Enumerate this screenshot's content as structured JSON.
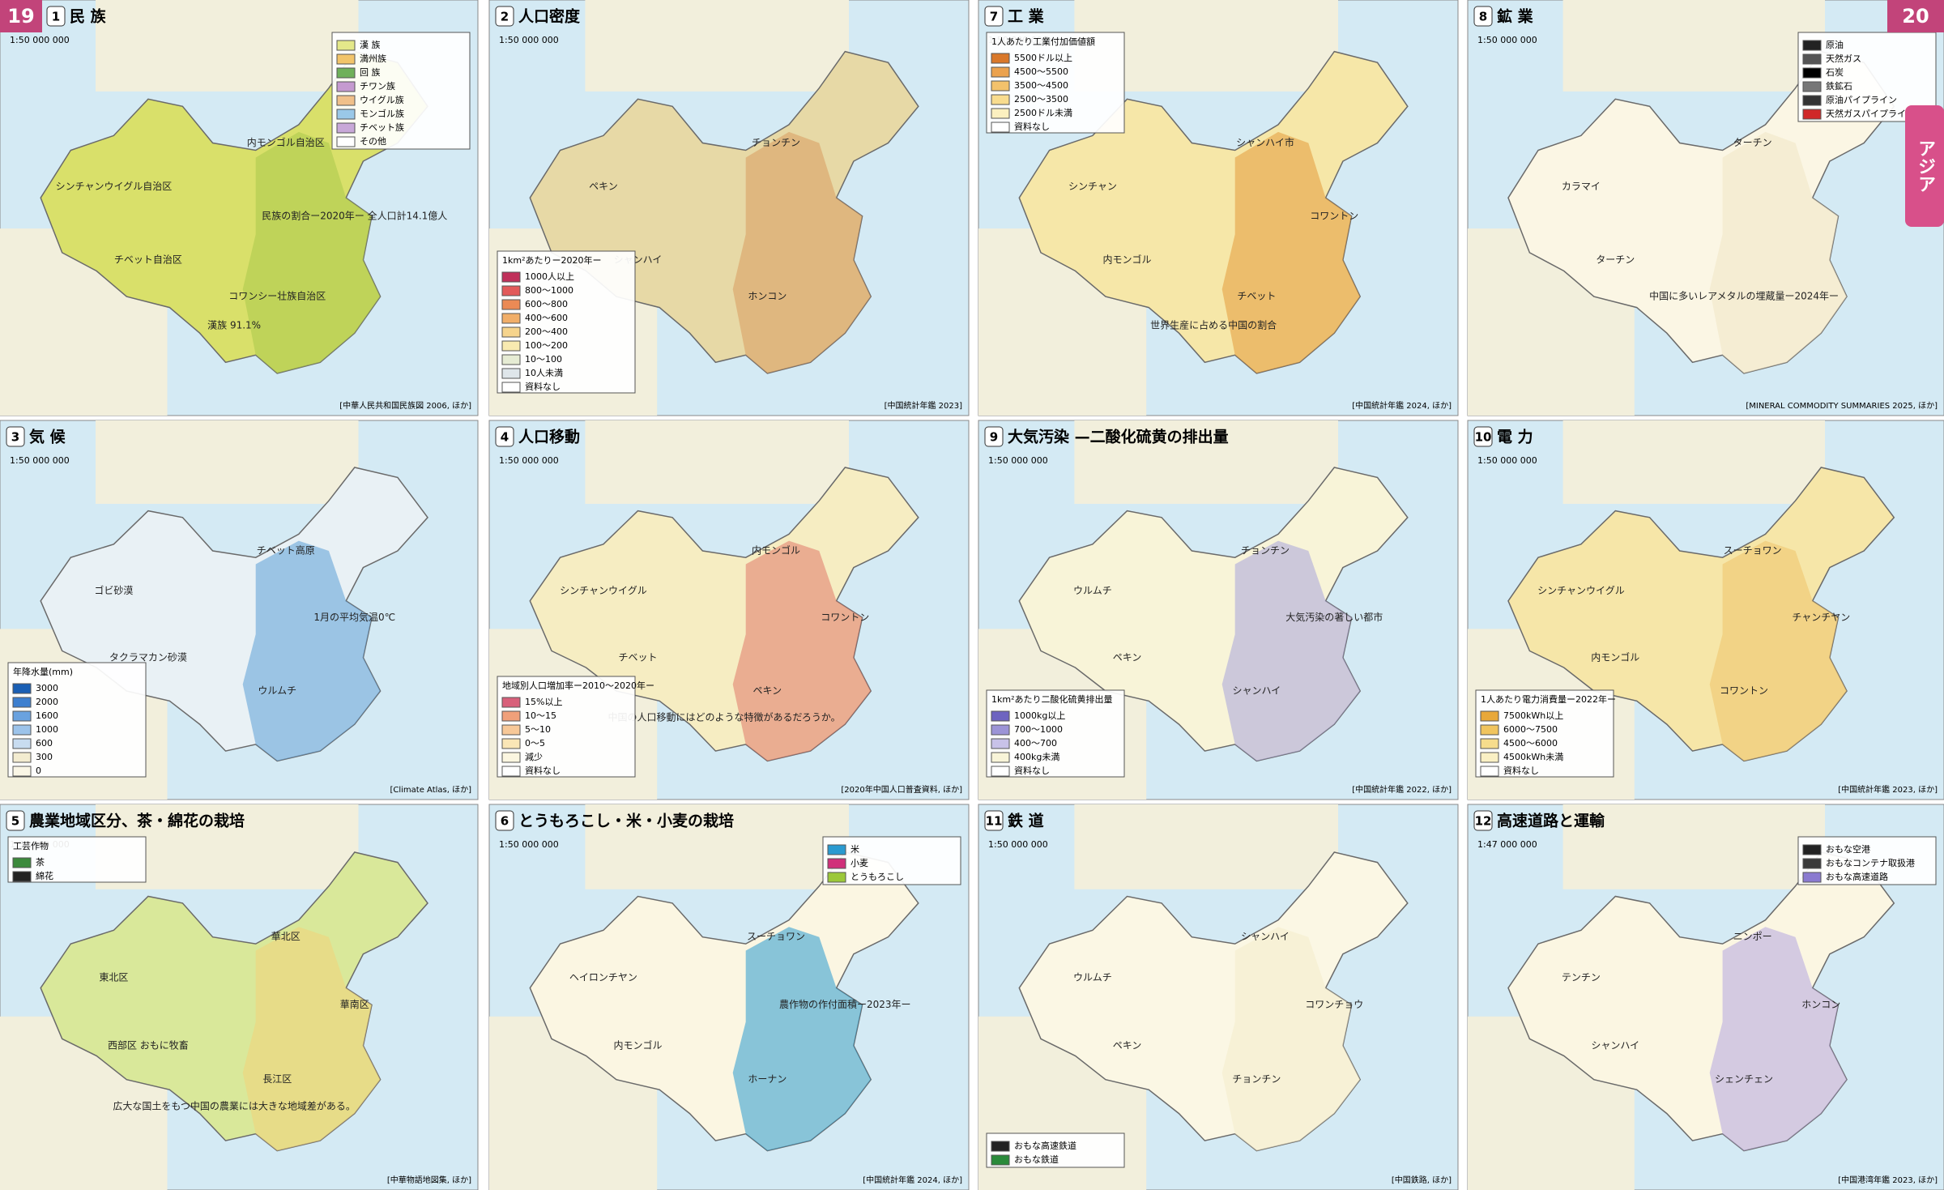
{
  "page": {
    "left_number": "19",
    "right_number": "20",
    "tab": "アジア"
  },
  "panels": [
    {
      "num": "1",
      "title": "民 族",
      "scale": "1:50 000 000",
      "source": "[中華人民共和国民族図 2006, ほか]",
      "base": "#d9e06a",
      "accent": "#a9c84a",
      "legend_corner": "top-right",
      "legend_title": null,
      "legend": [
        {
          "label": "漢 族",
          "color": "#e4e88a"
        },
        {
          "label": "満州族",
          "color": "#f2c46a"
        },
        {
          "label": "回 族",
          "color": "#6fb05a"
        },
        {
          "label": "チワン族",
          "color": "#c59ad0"
        },
        {
          "label": "ウイグル族",
          "color": "#f0c08a"
        },
        {
          "label": "モンゴル族",
          "color": "#9ac8e8"
        },
        {
          "label": "チベット族",
          "color": "#c8a8d8"
        },
        {
          "label": "その他",
          "color": "#ffffff"
        }
      ],
      "labels": [
        "シンチャンウイグル自治区",
        "チベット自治区",
        "内モンゴル自治区",
        "コワンシー壮族自治区",
        "民族の割合ー2020年ー 全人口計14.1億人",
        "漢族 91.1%"
      ]
    },
    {
      "num": "2",
      "title": "人口密度",
      "scale": "1:50 000 000",
      "source": "[中国統計年鑑 2023]",
      "base": "#e7d9a6",
      "accent": "#d89a5e",
      "legend_corner": "bottom-left",
      "legend_title": "1km²あたりー2020年ー",
      "legend": [
        {
          "label": "1000人以上",
          "color": "#c0305a"
        },
        {
          "label": "800〜1000",
          "color": "#e25a5a"
        },
        {
          "label": "600〜800",
          "color": "#eb8a55"
        },
        {
          "label": "400〜600",
          "color": "#f1ae68"
        },
        {
          "label": "200〜400",
          "color": "#f6d48c"
        },
        {
          "label": "100〜200",
          "color": "#f8eab0"
        },
        {
          "label": "10〜100",
          "color": "#e6ecd4"
        },
        {
          "label": "10人未満",
          "color": "#dfe6ea"
        },
        {
          "label": "資料なし",
          "color": "#ffffff"
        }
      ],
      "labels": [
        "ペキン",
        "シャンハイ",
        "チョンチン",
        "ホンコン"
      ]
    },
    {
      "num": "7",
      "title": "工 業",
      "scale": "1:50 000 000",
      "source": "[中国統計年鑑 2024, ほか]",
      "base": "#f6e7a8",
      "accent": "#e39a3a",
      "legend_corner": "top-left",
      "legend_title": "1人あたり工業付加価値額",
      "legend": [
        {
          "label": "5500ドル以上",
          "color": "#d9782a"
        },
        {
          "label": "4500〜5500",
          "color": "#eba24e"
        },
        {
          "label": "3500〜4500",
          "color": "#f3c26c"
        },
        {
          "label": "2500〜3500",
          "color": "#f8dc8e"
        },
        {
          "label": "2500ドル未満",
          "color": "#fbf0c0"
        },
        {
          "label": "資料なし",
          "color": "#ffffff"
        }
      ],
      "labels": [
        "シンチャン",
        "内モンゴル",
        "シャンハイ市",
        "チベット",
        "コワントン",
        "世界生産に占める中国の割合"
      ]
    },
    {
      "num": "8",
      "title": "鉱 業",
      "scale": "1:50 000 000",
      "source": "[MINERAL COMMODITY SUMMARIES 2025, ほか]",
      "base": "#fbf6e4",
      "accent": "#f0e6c4",
      "legend_corner": "top-right",
      "legend_title": null,
      "legend": [
        {
          "label": "原油",
          "color": "#222222"
        },
        {
          "label": "天然ガス",
          "color": "#555555"
        },
        {
          "label": "石炭",
          "color": "#000000"
        },
        {
          "label": "鉄鉱石",
          "color": "#777777"
        },
        {
          "label": "原油パイプライン",
          "color": "#333333"
        },
        {
          "label": "天然ガスパイプライン",
          "color": "#d02828"
        }
      ],
      "labels": [
        "カラマイ",
        "ターチン",
        "ターチン",
        "中国に多いレアメタルの埋蔵量ー2024年ー"
      ]
    },
    {
      "num": "3",
      "title": "気 候",
      "scale": "1:50 000 000",
      "source": "[Climate Atlas, ほか]",
      "base": "#e9f1f5",
      "accent": "#5b9fd6",
      "legend_corner": "bottom-left",
      "legend_title": "年降水量(mm)",
      "legend": [
        {
          "label": "3000",
          "color": "#1a5fb4"
        },
        {
          "label": "2000",
          "color": "#3d7fcf"
        },
        {
          "label": "1600",
          "color": "#6aa2df"
        },
        {
          "label": "1000",
          "color": "#9cc3ea"
        },
        {
          "label": "600",
          "color": "#c8dcf0"
        },
        {
          "label": "300",
          "color": "#f3ecd0"
        },
        {
          "label": "0",
          "color": "#faf6e6"
        }
      ],
      "labels": [
        "ゴビ砂漠",
        "タクラマカン砂漠",
        "チベット高原",
        "ウルムチ",
        "1月の平均気温0℃"
      ]
    },
    {
      "num": "4",
      "title": "人口移動",
      "scale": "1:50 000 000",
      "source": "[2020年中国人口普査資料, ほか]",
      "base": "#f6edc2",
      "accent": "#e0786a",
      "legend_corner": "bottom-left",
      "legend_title": "地域別人口増加率ー2010〜2020年ー",
      "legend": [
        {
          "label": "15%以上",
          "color": "#d8607a"
        },
        {
          "label": "10〜15",
          "color": "#f0a07a"
        },
        {
          "label": "5〜10",
          "color": "#f7c898"
        },
        {
          "label": "0〜5",
          "color": "#fae6b6"
        },
        {
          "label": "減少",
          "color": "#fbf6e0"
        },
        {
          "label": "資料なし",
          "color": "#ffffff"
        }
      ],
      "labels": [
        "シンチャンウイグル",
        "チベット",
        "内モンゴル",
        "ペキン",
        "コワントン",
        "中国の人口移動にはどのような特徴があるだろうか。"
      ]
    },
    {
      "num": "9",
      "title": "大気汚染 —二酸化硫黄の排出量",
      "scale": "1:50 000 000",
      "source": "[中国統計年鑑 2022, ほか]",
      "base": "#f8f4d8",
      "accent": "#a8a4dc",
      "legend_corner": "bottom-left",
      "legend_title": "1km²あたり二酸化硫黄排出量",
      "legend": [
        {
          "label": "1000kg以上",
          "color": "#6e64c0"
        },
        {
          "label": "700〜1000",
          "color": "#9c94d6"
        },
        {
          "label": "400〜700",
          "color": "#c8c2e8"
        },
        {
          "label": "400kg未満",
          "color": "#f8f4d8"
        },
        {
          "label": "資料なし",
          "color": "#ffffff"
        }
      ],
      "labels": [
        "ウルムチ",
        "ペキン",
        "チョンチン",
        "シャンハイ",
        "大気汚染の著しい都市"
      ]
    },
    {
      "num": "10",
      "title": "電 力",
      "scale": "1:50 000 000",
      "source": "[中国統計年鑑 2023, ほか]",
      "base": "#f6e6a8",
      "accent": "#eec26a",
      "legend_corner": "bottom-left",
      "legend_title": "1人あたり電力消費量ー2022年ー",
      "legend": [
        {
          "label": "7500kWh以上",
          "color": "#e8a83a"
        },
        {
          "label": "6000〜7500",
          "color": "#f0c45e"
        },
        {
          "label": "4500〜6000",
          "color": "#f6dc8c"
        },
        {
          "label": "4500kWh未満",
          "color": "#faf0c4"
        },
        {
          "label": "資料なし",
          "color": "#ffffff"
        }
      ],
      "labels": [
        "シンチャンウイグル",
        "内モンゴル",
        "スーチョワン",
        "コワントン",
        "チャンチヤン"
      ]
    },
    {
      "num": "5",
      "title": "農業地域区分、茶・綿花の栽培",
      "scale": "1:50 000 000",
      "source": "[中華物語地図集, ほか]",
      "base": "#d9e89a",
      "accent": "#f2d27a",
      "legend_corner": "top-left",
      "legend_title": "工芸作物",
      "legend": [
        {
          "label": "茶",
          "color": "#3c8a3c"
        },
        {
          "label": "綿花",
          "color": "#222222"
        }
      ],
      "labels": [
        "東北区",
        "西部区 おもに牧畜",
        "華北区",
        "長江区",
        "華南区",
        "広大な国土をもつ中国の農業には大きな地域差がある。"
      ]
    },
    {
      "num": "6",
      "title": "とうもろこし・米・小麦の栽培",
      "scale": "1:50 000 000",
      "source": "[中国統計年鑑 2024, ほか]",
      "base": "#fbf6e2",
      "accent": "#2a9ad0",
      "legend_corner": "top-right",
      "legend_title": null,
      "legend": [
        {
          "label": "米",
          "color": "#2a9ad0"
        },
        {
          "label": "小麦",
          "color": "#d0307a"
        },
        {
          "label": "とうもろこし",
          "color": "#9cc83a"
        }
      ],
      "labels": [
        "ヘイロンチヤン",
        "内モンゴル",
        "スーチョワン",
        "ホーナン",
        "農作物の作付面積ー2023年ー"
      ]
    },
    {
      "num": "11",
      "title": "鉄 道",
      "scale": "1:50 000 000",
      "source": "[中国鉄路, ほか]",
      "base": "#fbf7e4",
      "accent": "#f4ecca",
      "legend_corner": "bottom-left",
      "legend_title": null,
      "legend": [
        {
          "label": "おもな高速鉄道",
          "color": "#222222"
        },
        {
          "label": "おもな鉄道",
          "color": "#2a8a3a"
        }
      ],
      "labels": [
        "ウルムチ",
        "ペキン",
        "シャンハイ",
        "チョンチン",
        "コワンチョウ"
      ]
    },
    {
      "num": "12",
      "title": "高速道路と運輸",
      "scale": "1:47 000 000",
      "source": "[中国港湾年鑑 2023, ほか]",
      "base": "#fbf6e2",
      "accent": "#b4a6e0",
      "legend_corner": "top-right",
      "legend_title": null,
      "legend": [
        {
          "label": "おもな空港",
          "color": "#222222"
        },
        {
          "label": "おもなコンテナ取扱港",
          "color": "#3a3a3a"
        },
        {
          "label": "おもな高速道路",
          "color": "#8a7ad0"
        }
      ],
      "labels": [
        "テンチン",
        "シャンハイ",
        "ニンポー",
        "シェンチェン",
        "ホンコン"
      ]
    }
  ]
}
